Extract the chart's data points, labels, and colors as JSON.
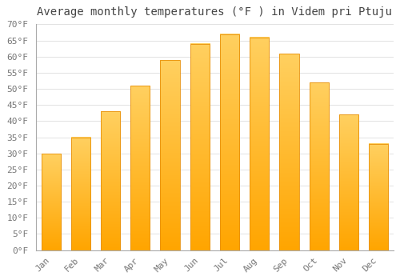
{
  "title": "Average monthly temperatures (°F ) in Videm pri Ptuju",
  "months": [
    "Jan",
    "Feb",
    "Mar",
    "Apr",
    "May",
    "Jun",
    "Jul",
    "Aug",
    "Sep",
    "Oct",
    "Nov",
    "Dec"
  ],
  "values": [
    30,
    35,
    43,
    51,
    59,
    64,
    67,
    66,
    61,
    52,
    42,
    33
  ],
  "bar_color_bottom": "#FFA500",
  "bar_color_top": "#FFD060",
  "bar_edge_color": "#E8900A",
  "background_color": "#ffffff",
  "plot_bg_color": "#ffffff",
  "ylim": [
    0,
    70
  ],
  "yticks": [
    0,
    5,
    10,
    15,
    20,
    25,
    30,
    35,
    40,
    45,
    50,
    55,
    60,
    65,
    70
  ],
  "ylabel_suffix": "°F",
  "grid_color": "#dddddd",
  "title_fontsize": 10,
  "tick_fontsize": 8,
  "bar_width": 0.65
}
